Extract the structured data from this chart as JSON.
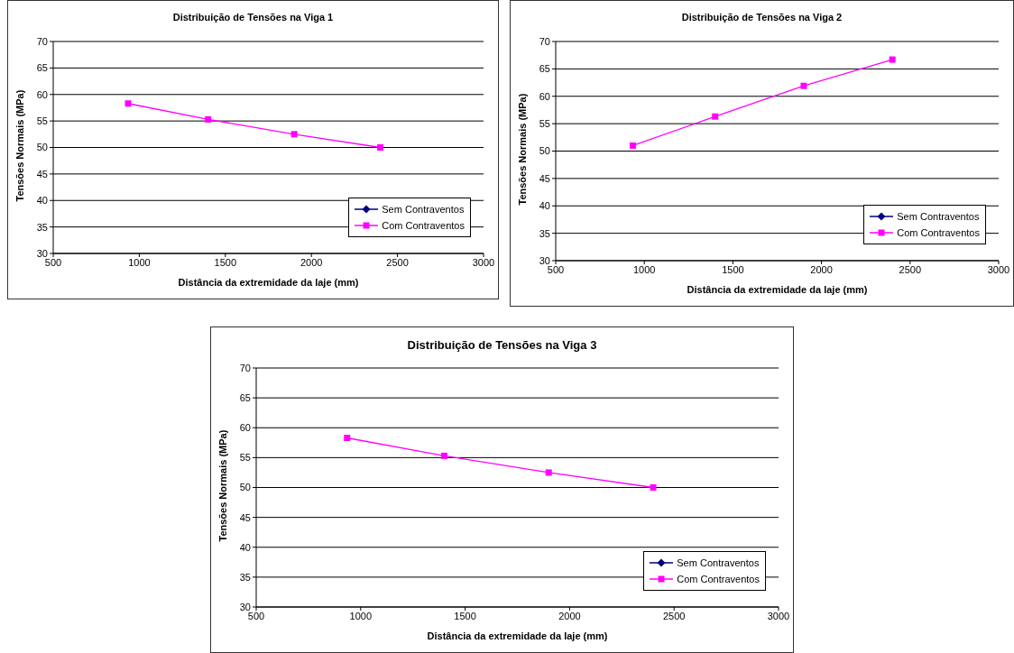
{
  "chart_data": [
    {
      "type": "line",
      "title": "Distribuição de Tensões na Viga 1",
      "xlabel": "Distância da extremidade da laje (mm)",
      "ylabel": "Tensões Normais (MPa)",
      "x": [
        935,
        1400,
        1900,
        2400
      ],
      "xlim": [
        500,
        3000
      ],
      "xticks": [
        500,
        1000,
        1500,
        2000,
        2500,
        3000
      ],
      "ylim": [
        30,
        70
      ],
      "yticks": [
        30,
        35,
        40,
        45,
        50,
        55,
        60,
        65,
        70
      ],
      "grid": "y",
      "legend": "bottom right",
      "series": [
        {
          "name": "Sem Contraventos",
          "color": "#000080",
          "marker": "diamond",
          "values": [
            null,
            null,
            null,
            null
          ]
        },
        {
          "name": "Com Contraventos",
          "color": "#ff00ff",
          "marker": "square",
          "values": [
            58.3,
            55.3,
            52.5,
            50
          ]
        }
      ]
    },
    {
      "type": "line",
      "title": "Distribuição de Tensões na Viga 2",
      "xlabel": "Distância da extremidade da laje (mm)",
      "ylabel": "Tensões Normais (MPa)",
      "x": [
        935,
        1400,
        1900,
        2400
      ],
      "xlim": [
        500,
        3000
      ],
      "xticks": [
        500,
        1000,
        1500,
        2000,
        2500,
        3000
      ],
      "ylim": [
        30,
        70
      ],
      "yticks": [
        30,
        35,
        40,
        45,
        50,
        55,
        60,
        65,
        70
      ],
      "grid": "y",
      "legend": "bottom right",
      "series": [
        {
          "name": "Sem Contraventos",
          "color": "#000080",
          "marker": "diamond",
          "values": [
            null,
            null,
            null,
            null
          ]
        },
        {
          "name": "Com Contraventos",
          "color": "#ff00ff",
          "marker": "square",
          "values": [
            51,
            56.3,
            61.9,
            66.7
          ]
        }
      ]
    },
    {
      "type": "line",
      "title": "Distribuição de Tensões na Viga 3",
      "xlabel": "Distância da extremidade da laje (mm)",
      "ylabel": "Tensões Normais (MPa)",
      "x": [
        935,
        1400,
        1900,
        2400
      ],
      "xlim": [
        500,
        3000
      ],
      "xticks": [
        500,
        1000,
        1500,
        2000,
        2500,
        3000
      ],
      "ylim": [
        30,
        70
      ],
      "yticks": [
        30,
        35,
        40,
        45,
        50,
        55,
        60,
        65,
        70
      ],
      "grid": "y",
      "legend": "bottom right",
      "series": [
        {
          "name": "Sem Contraventos",
          "color": "#000080",
          "marker": "diamond",
          "values": [
            null,
            null,
            null,
            null
          ]
        },
        {
          "name": "Com Contraventos",
          "color": "#ff00ff",
          "marker": "square",
          "values": [
            58.3,
            55.3,
            52.5,
            50
          ]
        }
      ]
    }
  ]
}
